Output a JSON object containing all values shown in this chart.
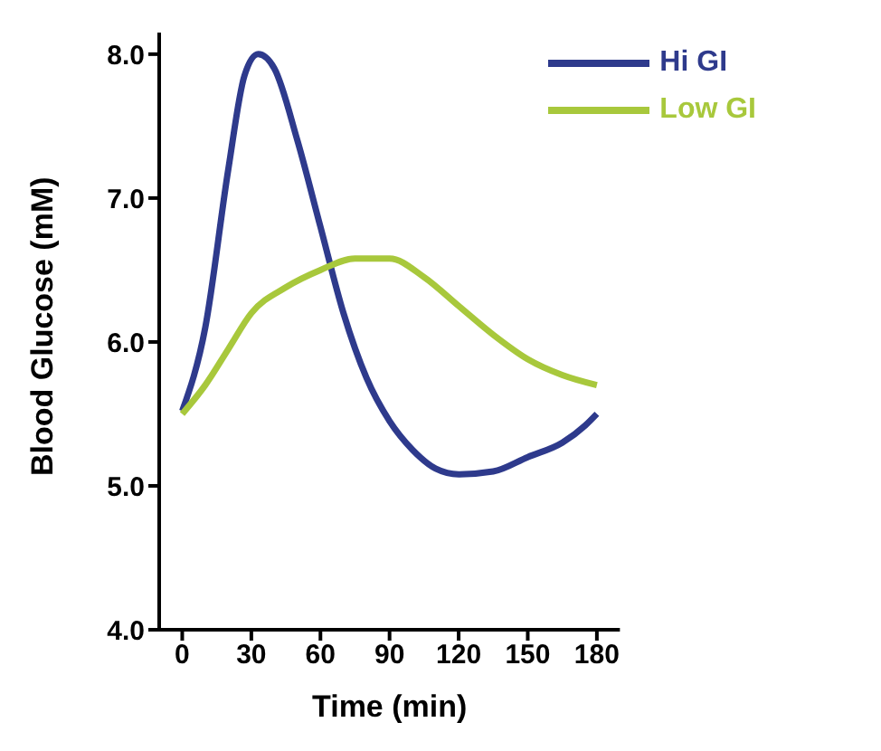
{
  "chart_data": {
    "type": "line",
    "xlabel": "Time (min)",
    "ylabel": "Blood Glucose (mM)",
    "series": [
      {
        "name": "Hi GI",
        "color": "#2e3a8c",
        "x": [
          0,
          10,
          20,
          27,
          33,
          40,
          50,
          60,
          70,
          80,
          90,
          100,
          110,
          120,
          135,
          150,
          165,
          175,
          180
        ],
        "values": [
          5.52,
          6.1,
          7.2,
          7.85,
          8.0,
          7.9,
          7.4,
          6.8,
          6.2,
          5.75,
          5.45,
          5.25,
          5.12,
          5.08,
          5.1,
          5.2,
          5.3,
          5.42,
          5.5
        ]
      },
      {
        "name": "Low GI",
        "color": "#a8c83c",
        "x": [
          0,
          10,
          20,
          30,
          45,
          60,
          75,
          90,
          105,
          120,
          135,
          150,
          165,
          180
        ],
        "values": [
          5.5,
          5.7,
          5.95,
          6.2,
          6.38,
          6.5,
          6.58,
          6.58,
          6.45,
          6.25,
          6.05,
          5.88,
          5.77,
          5.7
        ]
      }
    ],
    "xlim": [
      -10,
      190
    ],
    "xticks": [
      0,
      30,
      60,
      90,
      120,
      150,
      180
    ],
    "ylim": [
      4,
      8.15
    ],
    "yticks": [
      {
        "value": 4,
        "label": "4.0"
      },
      {
        "value": 5,
        "label": "5.0"
      },
      {
        "value": 6,
        "label": "6.0"
      },
      {
        "value": 7,
        "label": "7.0"
      },
      {
        "value": 8,
        "label": "8.0"
      }
    ],
    "grid": false,
    "legend": "top right",
    "marker": "none",
    "line_style": "solid"
  }
}
